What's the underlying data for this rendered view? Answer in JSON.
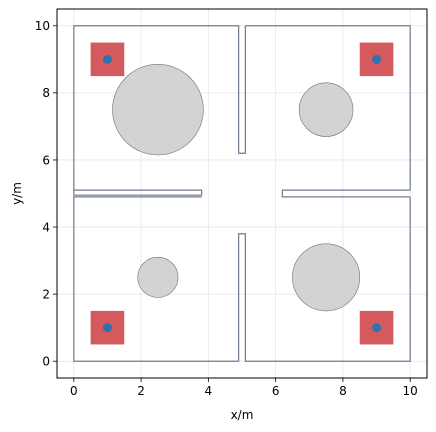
{
  "chart_data": {
    "type": "scatter",
    "title": "",
    "xlabel": "x/m",
    "ylabel": "y/m",
    "xlim": [
      -0.5,
      10.5
    ],
    "ylim": [
      -0.5,
      10.5
    ],
    "xticks": [
      "0",
      "2",
      "4",
      "6",
      "8",
      "10"
    ],
    "yticks": [
      "0",
      "2",
      "4",
      "6",
      "8",
      "10"
    ],
    "xtick_values": [
      0,
      2,
      4,
      6,
      8,
      10
    ],
    "ytick_values": [
      0,
      2,
      4,
      6,
      8,
      10
    ],
    "grid": true,
    "walls": [
      {
        "name": "wall-top-left",
        "points": [
          [
            0,
            5.1
          ],
          [
            3.8,
            5.1
          ],
          [
            3.8,
            4.95
          ],
          [
            0,
            4.95
          ],
          [
            0,
            10
          ],
          [
            4.9,
            10
          ],
          [
            4.9,
            6.2
          ],
          [
            5.1,
            6.2
          ],
          [
            5.1,
            10
          ]
        ]
      },
      {
        "name": "wall-top-right",
        "points": [
          [
            5.1,
            10
          ],
          [
            10,
            10
          ],
          [
            10,
            5.1
          ],
          [
            6.2,
            5.1
          ],
          [
            6.2,
            4.9
          ],
          [
            10,
            4.9
          ]
        ]
      },
      {
        "name": "wall-bottom-right",
        "points": [
          [
            10,
            4.9
          ],
          [
            10,
            0
          ],
          [
            5.1,
            0
          ],
          [
            5.1,
            3.8
          ],
          [
            4.9,
            3.8
          ],
          [
            4.9,
            0
          ]
        ]
      },
      {
        "name": "wall-bottom-left",
        "points": [
          [
            4.9,
            0
          ],
          [
            0,
            0
          ],
          [
            0,
            4.9
          ],
          [
            3.8,
            4.9
          ]
        ]
      }
    ],
    "obstacles": [
      {
        "x": 2.5,
        "y": 7.5,
        "r": 1.35
      },
      {
        "x": 7.5,
        "y": 7.5,
        "r": 0.8
      },
      {
        "x": 2.5,
        "y": 2.5,
        "r": 0.6
      },
      {
        "x": 7.5,
        "y": 2.5,
        "r": 1.0
      }
    ],
    "goal_zones": [
      {
        "x": 1,
        "y": 9,
        "half_size": 0.5
      },
      {
        "x": 9,
        "y": 9,
        "half_size": 0.5
      },
      {
        "x": 1,
        "y": 1,
        "half_size": 0.5
      },
      {
        "x": 9,
        "y": 1,
        "half_size": 0.5
      }
    ],
    "points": [
      {
        "x": 1,
        "y": 9
      },
      {
        "x": 9,
        "y": 9
      },
      {
        "x": 1,
        "y": 1
      },
      {
        "x": 9,
        "y": 1
      }
    ],
    "colors": {
      "wall": "#6f7a8e",
      "obstacle_fill": "#d3d3d3",
      "obstacle_edge": "#707070",
      "zone": "#d45a5e",
      "point": "#2d73b0",
      "grid": "#e6e6e6",
      "axis": "#000000"
    }
  }
}
